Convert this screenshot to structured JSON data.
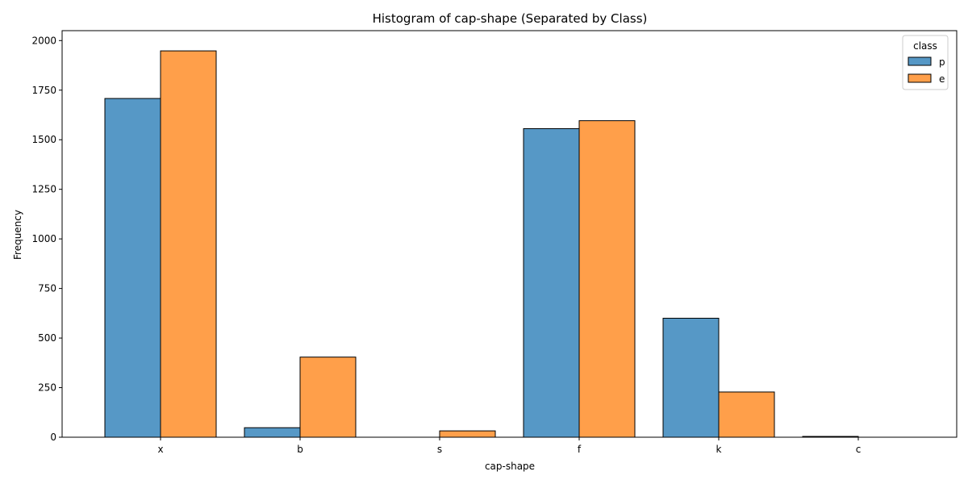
{
  "chart_data": {
    "type": "bar",
    "title": "Histogram of cap-shape (Separated by Class)",
    "xlabel": "cap-shape",
    "ylabel": "Frequency",
    "categories": [
      "x",
      "b",
      "s",
      "f",
      "k",
      "c"
    ],
    "series": [
      {
        "name": "p",
        "values": [
          1708,
          48,
          0,
          1556,
          600,
          4
        ],
        "color": "#5698c6"
      },
      {
        "name": "e",
        "values": [
          1948,
          404,
          32,
          1596,
          228,
          0
        ],
        "color": "#ff9f4a"
      }
    ],
    "ylim": [
      0,
      2050
    ],
    "yticks": [
      0,
      250,
      500,
      750,
      1000,
      1250,
      1500,
      1750,
      2000
    ],
    "grid": false,
    "legend": {
      "title": "class",
      "position": "top-right"
    }
  }
}
